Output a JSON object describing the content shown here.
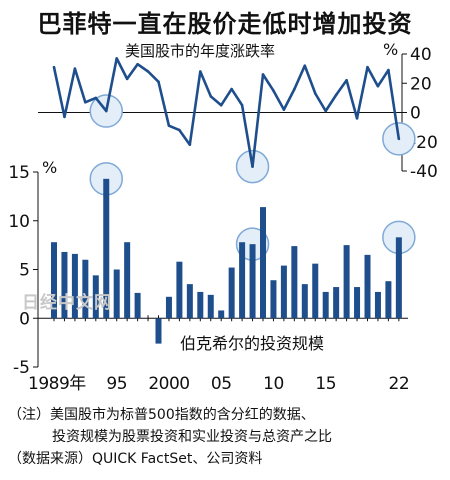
{
  "header": {
    "title": "巴菲特一直在股价走低时增加投资"
  },
  "chart_data": [
    {
      "type": "line",
      "title": "美国股市的年度涨跌率",
      "unit": "%",
      "ylim": [
        -40,
        40
      ],
      "yticks": [
        40,
        20,
        0,
        -20,
        -40
      ],
      "x": [
        1989,
        1990,
        1991,
        1992,
        1993,
        1994,
        1995,
        1996,
        1997,
        1998,
        1999,
        2000,
        2001,
        2002,
        2003,
        2004,
        2005,
        2006,
        2007,
        2008,
        2009,
        2010,
        2011,
        2012,
        2013,
        2014,
        2015,
        2016,
        2017,
        2018,
        2019,
        2020,
        2021,
        2022
      ],
      "values": [
        31,
        -3,
        30,
        7,
        10,
        1,
        37,
        23,
        33,
        28,
        21,
        -9,
        -12,
        -22,
        28,
        11,
        5,
        16,
        5,
        -37,
        26,
        15,
        2,
        16,
        32,
        13,
        1,
        12,
        22,
        -4,
        31,
        18,
        29,
        -18
      ],
      "highlight_years": [
        1994,
        2008,
        2022
      ]
    },
    {
      "type": "bar",
      "title": "伯克希尔的投资规模",
      "unit": "%",
      "ylim": [
        -5,
        15
      ],
      "yticks": [
        15,
        10,
        5,
        0,
        -5
      ],
      "x": [
        1989,
        1990,
        1991,
        1992,
        1993,
        1994,
        1995,
        1996,
        1997,
        1998,
        1999,
        2000,
        2001,
        2002,
        2003,
        2004,
        2005,
        2006,
        2007,
        2008,
        2009,
        2010,
        2011,
        2012,
        2013,
        2014,
        2015,
        2016,
        2017,
        2018,
        2019,
        2020,
        2021,
        2022
      ],
      "values": [
        7.8,
        6.8,
        6.6,
        6.0,
        4.4,
        14.3,
        5.0,
        7.8,
        2.6,
        0,
        -2.6,
        2.2,
        5.8,
        3.5,
        2.7,
        2.4,
        0.8,
        5.2,
        7.8,
        7.6,
        11.4,
        3.9,
        5.4,
        7.4,
        3.5,
        5.6,
        2.7,
        3.2,
        7.5,
        3.2,
        6.5,
        2.7,
        3.8,
        8.3
      ],
      "xtick_labels": [
        "1989年",
        "95",
        "2000",
        "05",
        "10",
        "15",
        "22"
      ],
      "xtick_years": [
        1989,
        1995,
        2000,
        2005,
        2010,
        2015,
        2022
      ],
      "highlight_years": [
        1994,
        2008,
        2022
      ]
    }
  ],
  "watermark": "日经中文网",
  "notes": {
    "line1": "（注）美国股市为标普500指数的含分红的数据、",
    "line2": "投资规模为股票投资和实业投资与总资产之比",
    "source": "（数据来源）QUICK FactSet、公司资料"
  },
  "colors": {
    "main": "#1f4e8c",
    "highlight_fill": "#e3eef8",
    "highlight_stroke": "#7fa9d6"
  }
}
